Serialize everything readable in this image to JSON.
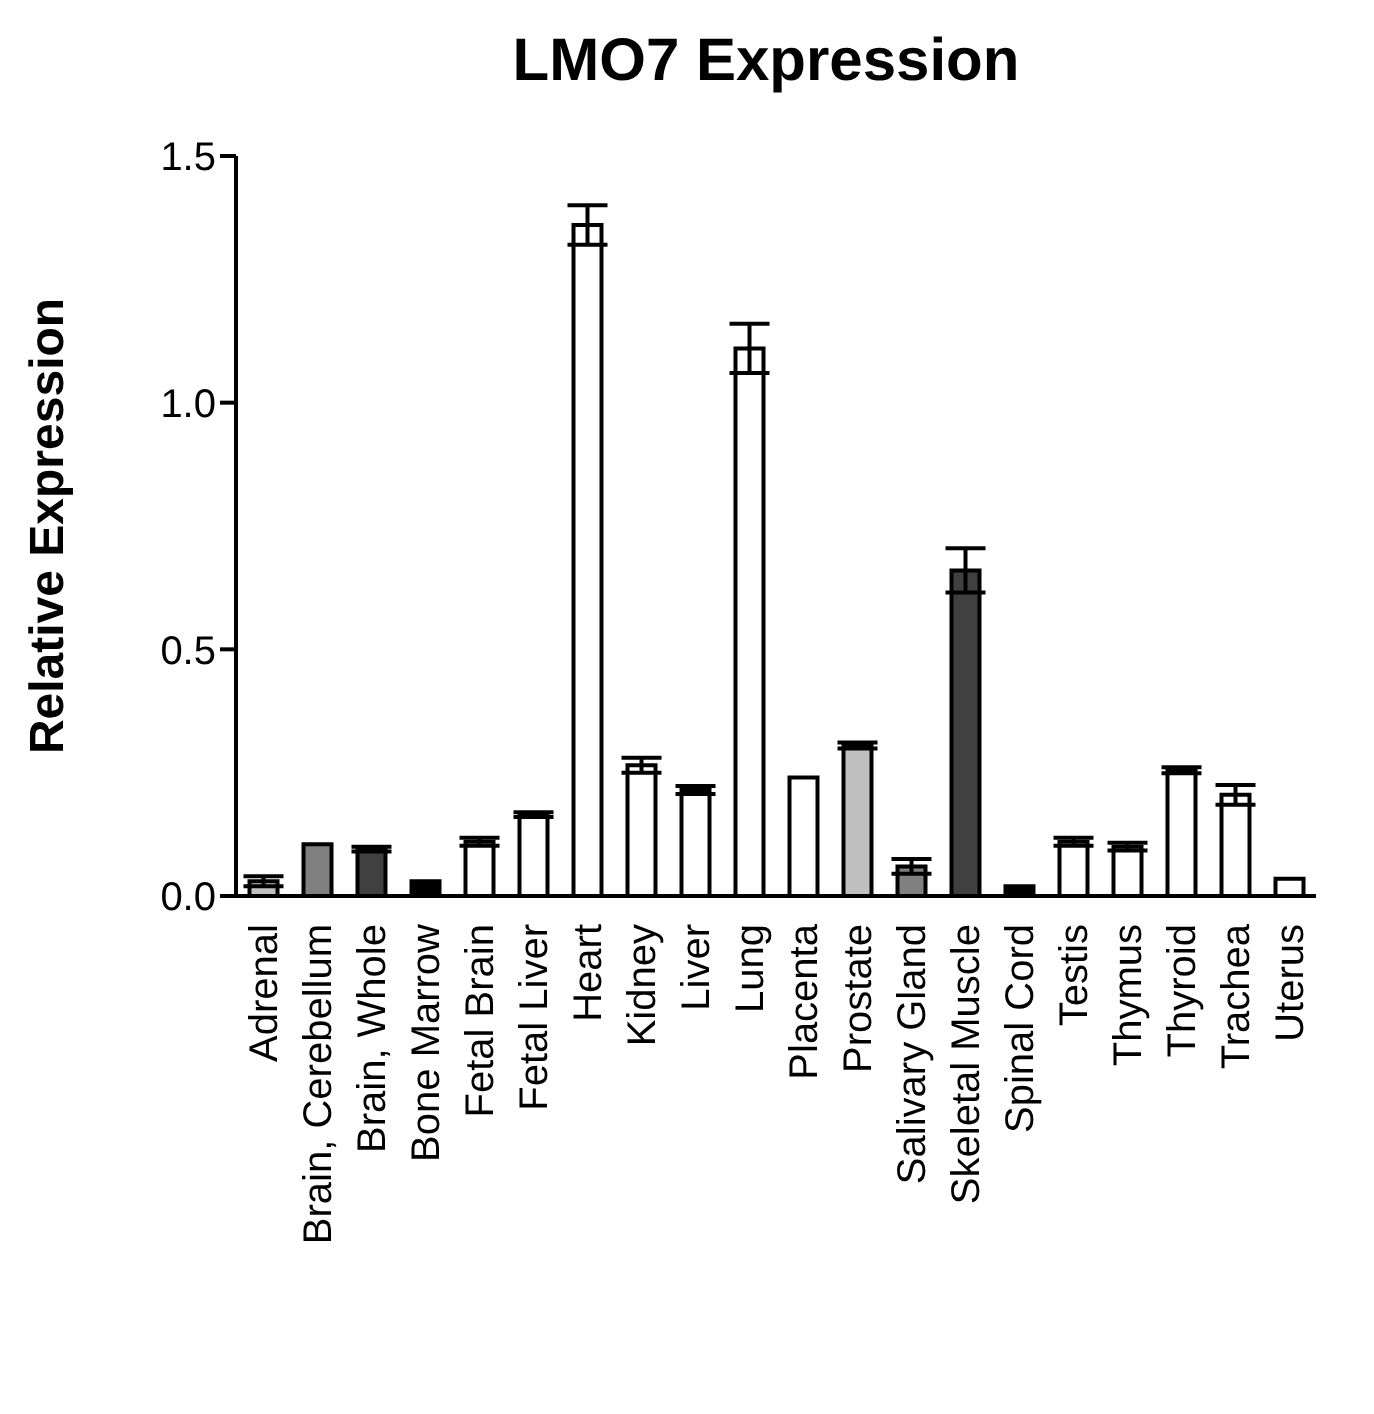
{
  "chart_data": {
    "type": "bar",
    "title": "LMO7 Expression",
    "ylabel": "Relative Expression",
    "categories": [
      "Adrenal",
      "Brain, Cerebellum",
      "Brain, Whole",
      "Bone Marrow",
      "Fetal Brain",
      "Fetal Liver",
      "Heart",
      "Kidney",
      "Liver",
      "Lung",
      "Placenta",
      "Prostate",
      "Salivary Gland",
      "Skeletal Muscle",
      "Spinal Cord",
      "Testis",
      "Thymus",
      "Thyroid",
      "Trachea",
      "Uterus"
    ],
    "values": [
      0.03,
      0.105,
      0.095,
      0.03,
      0.11,
      0.165,
      1.36,
      0.265,
      0.215,
      1.11,
      0.24,
      0.305,
      0.06,
      0.66,
      0.02,
      0.11,
      0.1,
      0.255,
      0.205,
      0.035
    ],
    "errors": [
      0.01,
      null,
      0.005,
      null,
      0.008,
      0.005,
      0.04,
      0.015,
      0.008,
      0.05,
      null,
      0.006,
      0.015,
      0.045,
      null,
      0.008,
      0.008,
      0.006,
      0.02,
      null
    ],
    "colors": [
      "#c0c0c0",
      "#808080",
      "#404040",
      "#000000",
      "#ffffff",
      "#ffffff",
      "#ffffff",
      "#ffffff",
      "#ffffff",
      "#ffffff",
      "#ffffff",
      "#c0c0c0",
      "#808080",
      "#404040",
      "#000000",
      "#ffffff",
      "#ffffff",
      "#ffffff",
      "#ffffff",
      "#ffffff"
    ],
    "ylim": [
      0,
      1.5
    ],
    "yticks": [
      {
        "value": 0,
        "label": "0.0"
      },
      {
        "value": 0.5,
        "label": "0.5"
      },
      {
        "value": 1,
        "label": "1.0"
      },
      {
        "value": 1.5,
        "label": "1.5"
      }
    ],
    "grid": false,
    "legend": false
  }
}
